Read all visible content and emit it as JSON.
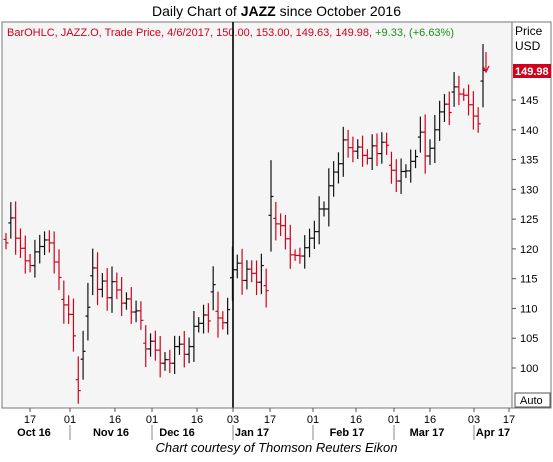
{
  "title_prefix": "Daily Chart of ",
  "title_ticker": "JAZZ",
  "title_suffix": " since October 2016",
  "footer": "Chart courtesy of Thomson Reuters Eikon",
  "info": {
    "prefix": "BarOHLC, JAZZ.O, Trade Price, 4/6/2017, 150.00, 153.00, 149.63, 149.98, ",
    "change": "+9.33, (+6.63%)"
  },
  "axis": {
    "price_label_1": "Price",
    "price_label_2": "USD",
    "last_price": "149.98",
    "auto_button": "Auto"
  },
  "colors": {
    "up": "#111111",
    "down": "#d0021b",
    "info_red": "#d0021b",
    "info_green": "#1a8f1a",
    "plot_bg": "#f5f5f5"
  },
  "chart_data": {
    "type": "bar",
    "subtype": "ohlc",
    "title": "Daily Chart of JAZZ since October 2016",
    "ylabel": "Price USD",
    "ylim": [
      94,
      160
    ],
    "y_ticks": [
      100,
      105,
      110,
      115,
      120,
      125,
      130,
      135,
      140,
      145
    ],
    "last_price": 149.98,
    "day_ticks": [
      "17",
      "01",
      "16",
      "01",
      "16",
      "03",
      "17",
      "01",
      "16",
      "01",
      "16",
      "03",
      "17"
    ],
    "month_labels": [
      "Oct 16",
      "Nov 16",
      "Dec 16",
      "Jan 17",
      "Feb 17",
      "Mar 17",
      "Apr 17"
    ],
    "grid": false,
    "closes": [
      121.0,
      125.2,
      121.8,
      120.1,
      118.0,
      117.2,
      119.5,
      120.4,
      121.5,
      121.0,
      117.8,
      115.2,
      110.6,
      109.0,
      105.4,
      96.2,
      102.8,
      110.2,
      116.8,
      113.2,
      114.6,
      111.8,
      114.5,
      113.1,
      110.9,
      111.6,
      109.4,
      109.6,
      108.0,
      103.2,
      104.5,
      103.0,
      100.8,
      101.4,
      100.8,
      103.6,
      104.0,
      102.3,
      103.6,
      107.0,
      107.5,
      108.9,
      107.9,
      114.0,
      108.4,
      107.6,
      109.8,
      116.5,
      117.6,
      114.7,
      116.6,
      115.9,
      114.4,
      117.2,
      113.0,
      128.8,
      124.2,
      123.9,
      121.7,
      119.0,
      118.9,
      118.8,
      120.2,
      121.8,
      122.9,
      126.7,
      126.7,
      130.6,
      132.9,
      134.3,
      138.3,
      137.0,
      136.4,
      137.1,
      135.7,
      135.2,
      137.3,
      136.0,
      137.9,
      137.4,
      133.2,
      131.4,
      133.0,
      133.1,
      134.7,
      135.5,
      139.6,
      135.6,
      136.9,
      140.0,
      143.0,
      144.3,
      142.9,
      147.2,
      146.0,
      145.8,
      144.2,
      142.3,
      141.0,
      149.98
    ]
  }
}
